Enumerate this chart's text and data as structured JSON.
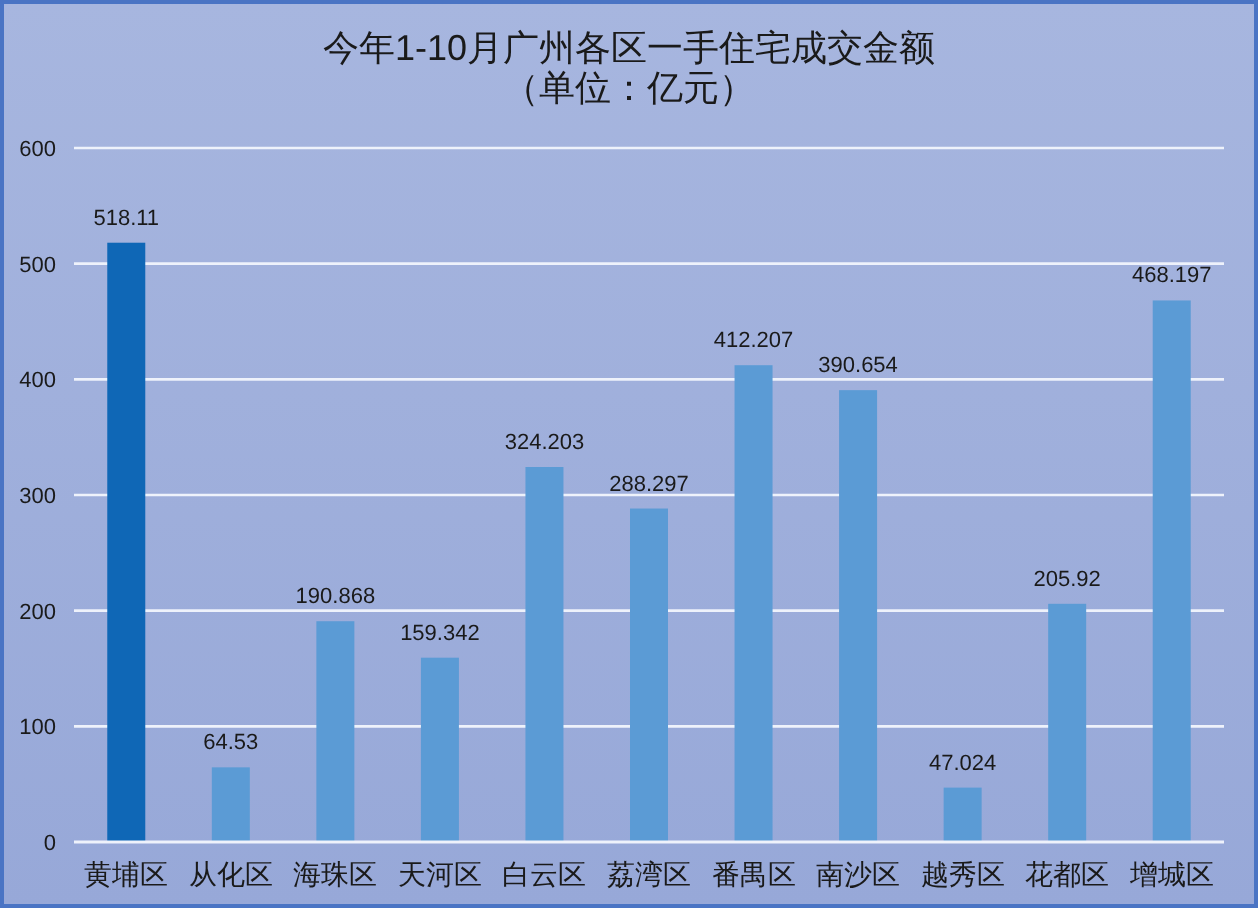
{
  "chart_data": {
    "type": "bar",
    "title": "今年1-10月广州各区一手住宅成交金额",
    "subtitle": "（单位：亿元）",
    "categories": [
      "黄埔区",
      "从化区",
      "海珠区",
      "天河区",
      "白云区",
      "荔湾区",
      "番禺区",
      "南沙区",
      "越秀区",
      "花都区",
      "增城区"
    ],
    "values": [
      518.11,
      64.53,
      190.868,
      159.342,
      324.203,
      288.297,
      412.207,
      390.654,
      47.024,
      205.92,
      468.197
    ],
    "colors": [
      "#0f67b6",
      "#5b9bd5",
      "#5b9bd5",
      "#5b9bd5",
      "#5b9bd5",
      "#5b9bd5",
      "#5b9bd5",
      "#5b9bd5",
      "#5b9bd5",
      "#5b9bd5",
      "#5b9bd5"
    ],
    "ylim": [
      0,
      600
    ],
    "yticks": [
      0,
      100,
      200,
      300,
      400,
      500,
      600
    ],
    "grid": "y",
    "data_labels": true
  }
}
